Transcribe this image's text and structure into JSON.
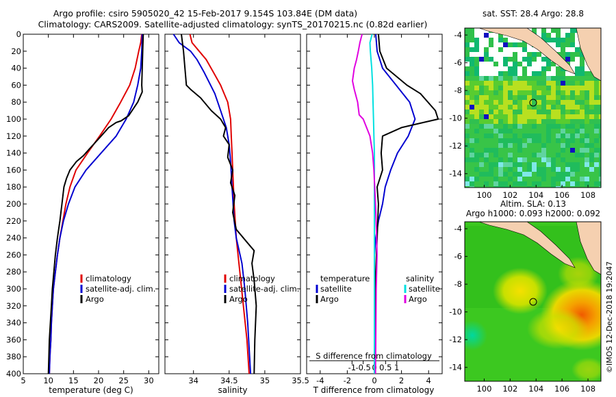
{
  "title_line1": "Argo profile: csiro 5905020_42 15-Feb-2017 9.154S 103.84E (DM data)",
  "title_line2": "Climatology: CARS2009. Satellite-adjusted climatology: synTS_20170215.nc (0.82d earlier)",
  "colors": {
    "climatology": "#e00000",
    "satellite": "#0000d0",
    "argo": "#000000",
    "sal_satellite": "#00e0e0",
    "sal_argo": "#e000e0"
  },
  "chart_data": [
    {
      "id": "temperature",
      "type": "line",
      "xlabel": "temperature (deg C)",
      "xlim": [
        5,
        32
      ],
      "xticks": [
        5,
        10,
        15,
        20,
        25,
        30
      ],
      "xtick_labels": [
        "5",
        "10",
        "15",
        "20",
        "25",
        "30"
      ],
      "ylim": [
        0,
        400
      ],
      "yticks": [
        0,
        20,
        40,
        60,
        80,
        100,
        120,
        140,
        160,
        180,
        200,
        220,
        240,
        260,
        280,
        300,
        320,
        340,
        360,
        380,
        400
      ],
      "ytick_labels": [
        "0",
        "20",
        "40",
        "60",
        "80",
        "100",
        "120",
        "140",
        "160",
        "180",
        "200",
        "220",
        "240",
        "260",
        "280",
        "300",
        "320",
        "340",
        "360",
        "380",
        "400"
      ],
      "legend": [
        "climatology",
        "satellite-adj. clim.",
        "Argo"
      ],
      "series": [
        {
          "name": "climatology",
          "color": "#e00000",
          "points": [
            [
              28.6,
              0
            ],
            [
              28.4,
              10
            ],
            [
              28.0,
              20
            ],
            [
              27.3,
              40
            ],
            [
              26.2,
              60
            ],
            [
              24.4,
              80
            ],
            [
              22.5,
              100
            ],
            [
              20.2,
              120
            ],
            [
              17.8,
              140
            ],
            [
              15.5,
              160
            ],
            [
              14.3,
              180
            ],
            [
              13.5,
              200
            ],
            [
              12.9,
              220
            ],
            [
              12.3,
              240
            ],
            [
              11.8,
              260
            ],
            [
              11.4,
              280
            ],
            [
              11.0,
              300
            ],
            [
              10.8,
              320
            ],
            [
              10.6,
              340
            ],
            [
              10.5,
              360
            ],
            [
              10.3,
              380
            ],
            [
              10.2,
              400
            ]
          ]
        },
        {
          "name": "satellite-adj. clim.",
          "color": "#0000d0",
          "points": [
            [
              28.7,
              0
            ],
            [
              28.6,
              20
            ],
            [
              28.4,
              40
            ],
            [
              27.8,
              60
            ],
            [
              27.0,
              80
            ],
            [
              25.5,
              100
            ],
            [
              23.5,
              120
            ],
            [
              20.5,
              140
            ],
            [
              17.5,
              160
            ],
            [
              15.3,
              180
            ],
            [
              14.0,
              200
            ],
            [
              13.0,
              220
            ],
            [
              12.3,
              240
            ],
            [
              11.8,
              260
            ],
            [
              11.4,
              280
            ],
            [
              11.0,
              300
            ],
            [
              10.8,
              320
            ],
            [
              10.6,
              340
            ],
            [
              10.5,
              360
            ],
            [
              10.3,
              380
            ],
            [
              10.2,
              400
            ]
          ]
        },
        {
          "name": "Argo",
          "color": "#000000",
          "points": [
            [
              28.9,
              0
            ],
            [
              28.8,
              20
            ],
            [
              28.7,
              40
            ],
            [
              28.6,
              60
            ],
            [
              28.7,
              68
            ],
            [
              27.8,
              80
            ],
            [
              26.0,
              96
            ],
            [
              24.5,
              102
            ],
            [
              23.5,
              104
            ],
            [
              22.0,
              110
            ],
            [
              20.5,
              120
            ],
            [
              18.5,
              133
            ],
            [
              17.0,
              143
            ],
            [
              15.6,
              150
            ],
            [
              14.3,
              160
            ],
            [
              13.6,
              170
            ],
            [
              13.1,
              180
            ],
            [
              12.7,
              200
            ],
            [
              12.3,
              220
            ],
            [
              11.8,
              240
            ],
            [
              11.4,
              260
            ],
            [
              11.1,
              280
            ],
            [
              10.8,
              300
            ],
            [
              10.6,
              320
            ],
            [
              10.4,
              340
            ],
            [
              10.2,
              360
            ],
            [
              10.1,
              380
            ],
            [
              10.0,
              400
            ]
          ]
        }
      ]
    },
    {
      "id": "salinity",
      "type": "line",
      "xlabel": "salinity",
      "xlim": [
        33.6,
        35.5
      ],
      "xticks": [
        34,
        34.5,
        35,
        35.5
      ],
      "xtick_labels": [
        "34",
        "34.5",
        "35",
        "35.5"
      ],
      "ylim": [
        0,
        400
      ],
      "legend": [
        "climatology",
        "satellite-adj. clim.",
        "Argo"
      ],
      "series": [
        {
          "name": "climatology",
          "color": "#e00000",
          "points": [
            [
              33.95,
              0
            ],
            [
              33.98,
              10
            ],
            [
              34.08,
              20
            ],
            [
              34.18,
              30
            ],
            [
              34.28,
              45
            ],
            [
              34.38,
              60
            ],
            [
              34.48,
              80
            ],
            [
              34.52,
              100
            ],
            [
              34.53,
              120
            ],
            [
              34.54,
              140
            ],
            [
              34.55,
              160
            ],
            [
              34.57,
              200
            ],
            [
              34.6,
              240
            ],
            [
              34.65,
              280
            ],
            [
              34.7,
              320
            ],
            [
              34.75,
              360
            ],
            [
              34.78,
              400
            ]
          ]
        },
        {
          "name": "satellite-adj. clim.",
          "color": "#0000d0",
          "points": [
            [
              33.72,
              0
            ],
            [
              33.8,
              10
            ],
            [
              33.96,
              20
            ],
            [
              34.05,
              30
            ],
            [
              34.15,
              45
            ],
            [
              34.3,
              70
            ],
            [
              34.38,
              90
            ],
            [
              34.46,
              110
            ],
            [
              34.5,
              130
            ],
            [
              34.52,
              150
            ],
            [
              34.54,
              180
            ],
            [
              34.57,
              220
            ],
            [
              34.6,
              240
            ],
            [
              34.68,
              270
            ],
            [
              34.72,
              300
            ],
            [
              34.76,
              340
            ],
            [
              34.8,
              400
            ]
          ]
        },
        {
          "name": "Argo",
          "color": "#000000",
          "points": [
            [
              33.83,
              0
            ],
            [
              33.86,
              20
            ],
            [
              33.88,
              40
            ],
            [
              33.9,
              60
            ],
            [
              33.96,
              65
            ],
            [
              34.1,
              75
            ],
            [
              34.25,
              90
            ],
            [
              34.38,
              100
            ],
            [
              34.45,
              110
            ],
            [
              34.42,
              120
            ],
            [
              34.5,
              130
            ],
            [
              34.48,
              145
            ],
            [
              34.55,
              160
            ],
            [
              34.52,
              175
            ],
            [
              34.58,
              190
            ],
            [
              34.55,
              210
            ],
            [
              34.6,
              230
            ],
            [
              34.75,
              245
            ],
            [
              34.85,
              255
            ],
            [
              34.82,
              270
            ],
            [
              34.85,
              290
            ],
            [
              34.88,
              320
            ],
            [
              34.86,
              360
            ],
            [
              34.85,
              400
            ]
          ]
        }
      ]
    },
    {
      "id": "difference",
      "type": "line",
      "xlabel": "T difference from climatology",
      "xlabel_top": "S difference from climatology",
      "xlim": [
        -5,
        5
      ],
      "xticks": [
        -4,
        -2,
        0,
        2,
        4
      ],
      "xtick_labels": [
        "-4",
        "-2",
        "0",
        "2",
        "4"
      ],
      "sticks": [
        -1,
        -0.5,
        0,
        0.5,
        1
      ],
      "stick_labels": [
        "-1",
        "-0.5",
        "0",
        "0.5",
        "1"
      ],
      "ylim": [
        0,
        400
      ],
      "legend_temperature_title": "temperature",
      "legend_salinity_title": "salinity",
      "legend_temperature": [
        "satellite",
        "Argo"
      ],
      "legend_salinity": [
        "satellite",
        "Argo"
      ],
      "series": [
        {
          "name": "T satellite",
          "color": "#0000d0",
          "points": [
            [
              0.1,
              0
            ],
            [
              0.2,
              20
            ],
            [
              0.6,
              40
            ],
            [
              1.6,
              60
            ],
            [
              2.6,
              80
            ],
            [
              3.0,
              100
            ],
            [
              2.5,
              120
            ],
            [
              1.7,
              140
            ],
            [
              1.2,
              160
            ],
            [
              0.8,
              180
            ],
            [
              0.6,
              200
            ],
            [
              0.3,
              220
            ],
            [
              0.1,
              240
            ],
            [
              0.0,
              260
            ],
            [
              0.0,
              300
            ],
            [
              0.0,
              400
            ]
          ]
        },
        {
          "name": "T Argo",
          "color": "#000000",
          "points": [
            [
              0.3,
              0
            ],
            [
              0.4,
              20
            ],
            [
              0.9,
              40
            ],
            [
              2.4,
              60
            ],
            [
              3.4,
              70
            ],
            [
              4.5,
              90
            ],
            [
              4.7,
              100
            ],
            [
              3.6,
              104
            ],
            [
              2.0,
              110
            ],
            [
              0.6,
              120
            ],
            [
              0.5,
              140
            ],
            [
              0.6,
              160
            ],
            [
              0.2,
              180
            ],
            [
              0.3,
              200
            ],
            [
              0.2,
              240
            ],
            [
              0.1,
              280
            ],
            [
              0.1,
              320
            ],
            [
              0.0,
              400
            ]
          ]
        },
        {
          "name": "S satellite",
          "color": "#00e0e0",
          "points": [
            [
              -0.1,
              0
            ],
            [
              -0.2,
              10
            ],
            [
              -0.18,
              20
            ],
            [
              -0.12,
              40
            ],
            [
              -0.08,
              60
            ],
            [
              -0.06,
              80
            ],
            [
              -0.04,
              100
            ],
            [
              -0.02,
              120
            ],
            [
              0.0,
              140
            ],
            [
              0.0,
              200
            ],
            [
              0.0,
              400
            ]
          ]
        },
        {
          "name": "S Argo",
          "color": "#e000e0",
          "points": [
            [
              -0.55,
              0
            ],
            [
              -0.65,
              10
            ],
            [
              -0.72,
              20
            ],
            [
              -0.8,
              30
            ],
            [
              -0.9,
              40
            ],
            [
              -0.98,
              55
            ],
            [
              -0.9,
              65
            ],
            [
              -0.75,
              80
            ],
            [
              -0.68,
              95
            ],
            [
              -0.5,
              100
            ],
            [
              -0.35,
              110
            ],
            [
              -0.2,
              120
            ],
            [
              -0.08,
              140
            ],
            [
              -0.02,
              160
            ],
            [
              0.05,
              200
            ],
            [
              0.1,
              240
            ],
            [
              0.12,
              260
            ],
            [
              0.08,
              300
            ],
            [
              0.05,
              400
            ]
          ]
        }
      ]
    },
    {
      "id": "sst-map",
      "type": "heatmap",
      "title": "sat. SST: 28.4 Argo: 28.8",
      "xlim": [
        98.5,
        109
      ],
      "ylim": [
        -15,
        -3.5
      ],
      "xticks": [
        100,
        102,
        104,
        106,
        108
      ],
      "xtick_labels": [
        "100",
        "102",
        "104",
        "106",
        "108"
      ],
      "yticks": [
        -4,
        -6,
        -8,
        -10,
        -12,
        -14
      ],
      "ytick_labels": [
        "-4",
        "-6",
        "-8",
        "-10",
        "-12",
        "-14"
      ],
      "marker": {
        "lon": 103.84,
        "lat": -9.154
      }
    },
    {
      "id": "sla-map",
      "type": "heatmap",
      "title_line1": "Altim. SLA: 0.13",
      "title_line2": "Argo h1000: 0.093 h2000: 0.092",
      "xlim": [
        98.5,
        109
      ],
      "ylim": [
        -15,
        -3.5
      ],
      "xticks": [
        100,
        102,
        104,
        106,
        108
      ],
      "xtick_labels": [
        "100",
        "102",
        "104",
        "106",
        "108"
      ],
      "yticks": [
        -4,
        -6,
        -8,
        -10,
        -12,
        -14
      ],
      "ytick_labels": [
        "-4",
        "-6",
        "-8",
        "-10",
        "-12",
        "-14"
      ],
      "marker": {
        "lon": 103.84,
        "lat": -9.154
      }
    }
  ],
  "credit": "©IMOS 12-Dec-2018 19:2047"
}
